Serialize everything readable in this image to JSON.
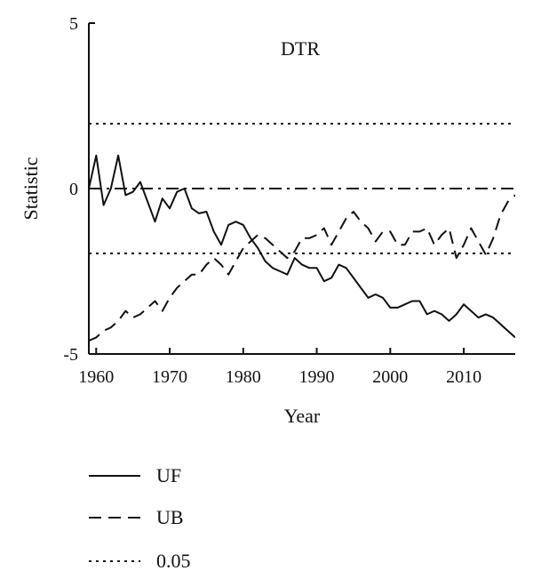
{
  "chart_data": {
    "type": "line",
    "title": "DTR",
    "xlabel": "Year",
    "ylabel": "Statistic",
    "xlim": [
      1959,
      2017
    ],
    "ylim": [
      -5,
      5
    ],
    "xticks": [
      1960,
      1970,
      1980,
      1990,
      2000,
      2010
    ],
    "yticks": [
      5,
      0,
      -5
    ],
    "x_tick_labels": [
      "1960",
      "1970",
      "1980",
      "1990",
      "2000",
      "2010"
    ],
    "y_tick_labels": [
      "5",
      "0",
      "-5"
    ],
    "grid": false,
    "legend_position": "bottom",
    "reference_lines": [
      {
        "name": "0.05",
        "style": "dotted",
        "y": 1.96
      },
      {
        "name": "0.05",
        "style": "dotted",
        "y": -1.96
      },
      {
        "name": "",
        "style": "dash-dot",
        "y": 0
      }
    ],
    "series": [
      {
        "name": "UF",
        "style": "solid",
        "x": [
          1959,
          1960,
          1961,
          1962,
          1963,
          1964,
          1965,
          1966,
          1967,
          1968,
          1969,
          1970,
          1971,
          1972,
          1973,
          1974,
          1975,
          1976,
          1977,
          1978,
          1979,
          1980,
          1981,
          1982,
          1983,
          1984,
          1985,
          1986,
          1987,
          1988,
          1989,
          1990,
          1991,
          1992,
          1993,
          1994,
          1995,
          1996,
          1997,
          1998,
          1999,
          2000,
          2001,
          2002,
          2003,
          2004,
          2005,
          2006,
          2007,
          2008,
          2009,
          2010,
          2011,
          2012,
          2013,
          2014,
          2015,
          2016,
          2017
        ],
        "values": [
          0.0,
          1.0,
          -0.5,
          0.0,
          1.0,
          -0.2,
          -0.1,
          0.2,
          -0.4,
          -1.0,
          -0.3,
          -0.6,
          -0.1,
          0.0,
          -0.6,
          -0.75,
          -0.7,
          -1.3,
          -1.7,
          -1.1,
          -1.0,
          -1.1,
          -1.5,
          -1.8,
          -2.2,
          -2.4,
          -2.5,
          -2.6,
          -2.1,
          -2.3,
          -2.4,
          -2.4,
          -2.8,
          -2.7,
          -2.3,
          -2.4,
          -2.7,
          -3.0,
          -3.3,
          -3.2,
          -3.3,
          -3.6,
          -3.6,
          -3.5,
          -3.4,
          -3.4,
          -3.8,
          -3.7,
          -3.8,
          -4.0,
          -3.8,
          -3.5,
          -3.7,
          -3.9,
          -3.8,
          -3.9,
          -4.1,
          -4.3,
          -4.5
        ]
      },
      {
        "name": "UB",
        "style": "dashed",
        "x": [
          1959,
          1960,
          1961,
          1962,
          1963,
          1964,
          1965,
          1966,
          1967,
          1968,
          1969,
          1970,
          1971,
          1972,
          1973,
          1974,
          1975,
          1976,
          1977,
          1978,
          1979,
          1980,
          1981,
          1982,
          1983,
          1984,
          1985,
          1986,
          1987,
          1988,
          1989,
          1990,
          1991,
          1992,
          1993,
          1994,
          1995,
          1996,
          1997,
          1998,
          1999,
          2000,
          2001,
          2002,
          2003,
          2004,
          2005,
          2006,
          2007,
          2008,
          2009,
          2010,
          2011,
          2012,
          2013,
          2014,
          2015,
          2016,
          2017
        ],
        "values": [
          -4.6,
          -4.5,
          -4.3,
          -4.2,
          -4.0,
          -3.7,
          -3.9,
          -3.8,
          -3.6,
          -3.4,
          -3.7,
          -3.3,
          -3.0,
          -2.8,
          -2.6,
          -2.6,
          -2.3,
          -2.1,
          -2.3,
          -2.6,
          -2.2,
          -1.8,
          -1.6,
          -1.4,
          -1.5,
          -1.7,
          -1.9,
          -2.1,
          -1.9,
          -1.5,
          -1.5,
          -1.4,
          -1.2,
          -1.7,
          -1.3,
          -0.9,
          -0.7,
          -1.0,
          -1.2,
          -1.6,
          -1.3,
          -1.3,
          -1.7,
          -1.7,
          -1.3,
          -1.3,
          -1.2,
          -1.7,
          -1.4,
          -1.2,
          -2.1,
          -1.7,
          -1.2,
          -1.6,
          -2.0,
          -1.5,
          -0.8,
          -0.4,
          -0.2
        ]
      }
    ]
  }
}
